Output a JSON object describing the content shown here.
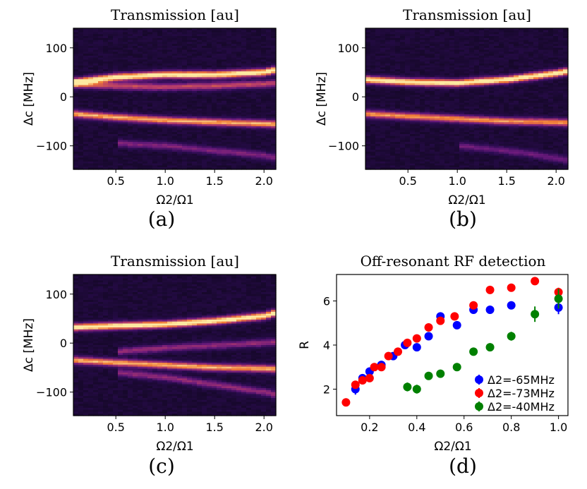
{
  "chart_data": [
    {
      "panel": "(a)",
      "type": "heatmap",
      "title": "Transmission [au]",
      "xlabel": "Ω2/Ω1",
      "ylabel": "Δc [MHz]",
      "xlim": [
        0.07,
        2.12
      ],
      "ylim": [
        -148,
        140
      ],
      "xticks": [
        "0.5",
        "1.0",
        "1.5",
        "2.0"
      ],
      "yticks": [
        "100",
        "0",
        "−100"
      ],
      "colormap": [
        "#0b0616",
        "#2c0c52",
        "#6a1a7c",
        "#b33a6c",
        "#f07a36",
        "#fde8a0"
      ],
      "ridges": [
        {
          "x": [
            0.07,
            0.5,
            1.0,
            1.5,
            2.0,
            2.12
          ],
          "y": [
            30,
            40,
            45,
            45,
            50,
            55
          ],
          "intensity": 1.0
        },
        {
          "x": [
            0.07,
            0.5,
            1.0,
            1.5,
            2.0,
            2.12
          ],
          "y": [
            25,
            22,
            20,
            22,
            26,
            28
          ],
          "intensity": 0.55
        },
        {
          "x": [
            0.07,
            0.5,
            1.0,
            1.5,
            2.0,
            2.12
          ],
          "y": [
            -35,
            -42,
            -48,
            -52,
            -55,
            -56
          ],
          "intensity": 0.8
        },
        {
          "x": [
            0.5,
            1.0,
            1.5,
            2.0,
            2.12
          ],
          "y": [
            -95,
            -100,
            -110,
            -120,
            -125
          ],
          "intensity": 0.35
        }
      ]
    },
    {
      "panel": "(b)",
      "type": "heatmap",
      "title": "Transmission [au]",
      "xlabel": "Ω2/Ω1",
      "ylabel": "Δc [MHz]",
      "xlim": [
        0.07,
        2.12
      ],
      "ylim": [
        -148,
        140
      ],
      "xticks": [
        "0.5",
        "1.0",
        "1.5",
        "2.0"
      ],
      "yticks": [
        "100",
        "0",
        "−100"
      ],
      "colormap": [
        "#0b0616",
        "#2c0c52",
        "#6a1a7c",
        "#b33a6c",
        "#f07a36",
        "#fde8a0"
      ],
      "ridges": [
        {
          "x": [
            0.07,
            0.5,
            1.0,
            1.5,
            2.0,
            2.12
          ],
          "y": [
            35,
            30,
            28,
            35,
            48,
            52
          ],
          "intensity": 1.0
        },
        {
          "x": [
            0.07,
            0.5,
            1.0,
            1.5,
            2.0,
            2.12
          ],
          "y": [
            -35,
            -40,
            -45,
            -50,
            -52,
            -53
          ],
          "intensity": 0.75
        },
        {
          "x": [
            1.0,
            1.5,
            2.0,
            2.12
          ],
          "y": [
            -100,
            -110,
            -125,
            -130
          ],
          "intensity": 0.3
        }
      ]
    },
    {
      "panel": "(c)",
      "type": "heatmap",
      "title": "Transmission [au]",
      "xlabel": "Ω2/Ω1",
      "ylabel": "Δc [MHz]",
      "xlim": [
        0.07,
        2.12
      ],
      "ylim": [
        -148,
        140
      ],
      "xticks": [
        "0.5",
        "1.0",
        "1.5",
        "2.0"
      ],
      "yticks": [
        "100",
        "0",
        "−100"
      ],
      "colormap": [
        "#0b0616",
        "#2c0c52",
        "#6a1a7c",
        "#b33a6c",
        "#f07a36",
        "#fde8a0"
      ],
      "ridges": [
        {
          "x": [
            0.07,
            0.5,
            1.0,
            1.5,
            2.0,
            2.12
          ],
          "y": [
            32,
            35,
            38,
            45,
            55,
            62
          ],
          "intensity": 1.0
        },
        {
          "x": [
            0.07,
            0.5,
            1.0,
            1.5,
            2.0,
            2.12
          ],
          "y": [
            -35,
            -40,
            -45,
            -50,
            -52,
            -53
          ],
          "intensity": 0.8
        },
        {
          "x": [
            0.5,
            1.0,
            1.5,
            2.0,
            2.12
          ],
          "y": [
            -18,
            -10,
            -5,
            0,
            2
          ],
          "intensity": 0.4
        },
        {
          "x": [
            0.5,
            1.0,
            1.5,
            2.0,
            2.12
          ],
          "y": [
            -60,
            -70,
            -85,
            -100,
            -105
          ],
          "intensity": 0.4
        }
      ]
    },
    {
      "panel": "(d)",
      "type": "scatter",
      "title": "Off-resonant RF detection",
      "xlabel": "Ω2/Ω1",
      "ylabel": "R",
      "xlim": [
        0.06,
        1.04
      ],
      "ylim": [
        0.8,
        7.2
      ],
      "xticks": [
        "0.2",
        "0.4",
        "0.6",
        "0.8",
        "1.0"
      ],
      "yticks": [
        "2",
        "4",
        "6"
      ],
      "legend_position": "bottom-right",
      "series": [
        {
          "name": "Δ2=-65MHz",
          "color": "#0000ff",
          "x": [
            0.14,
            0.17,
            0.2,
            0.25,
            0.3,
            0.35,
            0.4,
            0.45,
            0.5,
            0.57,
            0.64,
            0.71,
            0.8,
            1.0
          ],
          "y": [
            2.0,
            2.5,
            2.8,
            3.1,
            3.5,
            4.0,
            3.9,
            4.4,
            5.3,
            4.9,
            5.6,
            5.6,
            5.8,
            5.7
          ],
          "err": [
            0.25,
            0.1,
            0.1,
            0.1,
            0.1,
            0.1,
            0.1,
            0.1,
            0.1,
            0.1,
            0.1,
            0.1,
            0.1,
            0.3
          ]
        },
        {
          "name": "Δ2=-73MHz",
          "color": "#ff0000",
          "x": [
            0.1,
            0.14,
            0.17,
            0.2,
            0.22,
            0.25,
            0.28,
            0.32,
            0.36,
            0.4,
            0.45,
            0.5,
            0.56,
            0.64,
            0.71,
            0.8,
            0.9,
            1.0
          ],
          "y": [
            1.4,
            2.2,
            2.4,
            2.5,
            3.0,
            3.0,
            3.5,
            3.7,
            4.1,
            4.3,
            4.8,
            5.1,
            5.3,
            5.8,
            6.5,
            6.6,
            6.9,
            6.4
          ],
          "err": [
            0.1,
            0.1,
            0.1,
            0.1,
            0.1,
            0.1,
            0.1,
            0.1,
            0.1,
            0.1,
            0.1,
            0.1,
            0.1,
            0.1,
            0.1,
            0.1,
            0.1,
            0.2
          ]
        },
        {
          "name": "Δ2=-40MHz",
          "color": "#008000",
          "x": [
            0.36,
            0.4,
            0.45,
            0.5,
            0.57,
            0.64,
            0.71,
            0.8,
            0.9,
            1.0
          ],
          "y": [
            2.1,
            2.0,
            2.6,
            2.7,
            3.0,
            3.7,
            3.9,
            4.4,
            5.4,
            6.1
          ],
          "err": [
            0.2,
            0.2,
            0.1,
            0.1,
            0.1,
            0.1,
            0.15,
            0.2,
            0.35,
            0.45
          ]
        }
      ]
    }
  ]
}
